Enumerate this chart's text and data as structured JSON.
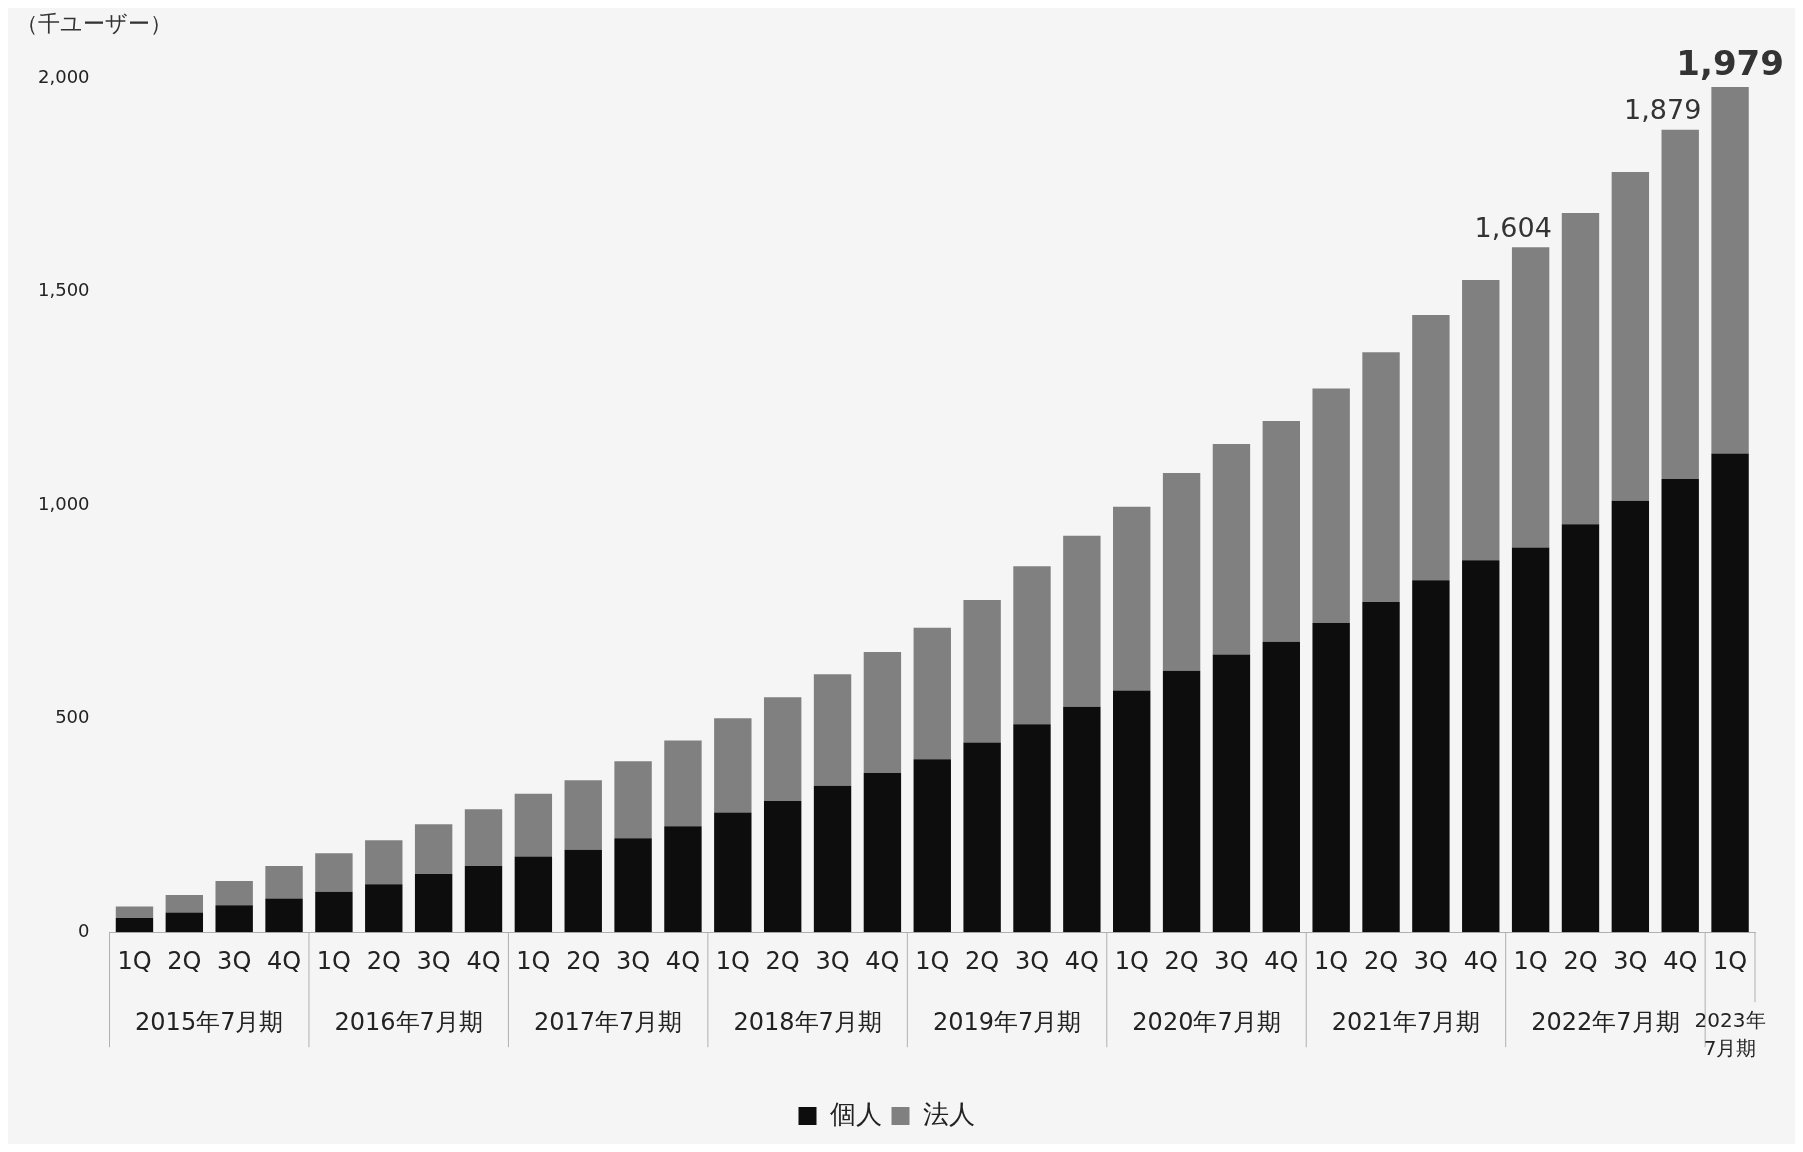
{
  "chart_data": {
    "type": "bar",
    "stacked": true,
    "ylabel": "（千ユーザー）",
    "categories": [
      "1Q",
      "2Q",
      "3Q",
      "4Q",
      "1Q",
      "2Q",
      "3Q",
      "4Q",
      "1Q",
      "2Q",
      "3Q",
      "4Q",
      "1Q",
      "2Q",
      "3Q",
      "4Q",
      "1Q",
      "2Q",
      "3Q",
      "4Q",
      "1Q",
      "2Q",
      "3Q",
      "4Q",
      "1Q",
      "2Q",
      "3Q",
      "4Q",
      "1Q",
      "2Q",
      "3Q",
      "4Q",
      "1Q"
    ],
    "series": [
      {
        "name": "個人",
        "color": "#0d0d0d",
        "values": [
          33,
          46,
          63,
          79,
          95,
          112,
          136,
          155,
          177,
          193,
          220,
          248,
          280,
          307,
          343,
          373,
          405,
          444,
          487,
          528,
          566,
          612,
          650,
          680,
          724,
          773,
          824,
          871,
          901,
          955,
          1010,
          1061,
          1121
        ]
      },
      {
        "name": "法人",
        "color": "#808080",
        "values": [
          27,
          41,
          57,
          76,
          90,
          103,
          117,
          133,
          147,
          163,
          180,
          201,
          221,
          243,
          261,
          283,
          308,
          334,
          370,
          400,
          430,
          463,
          493,
          517,
          549,
          585,
          621,
          656,
          703,
          729,
          770,
          818,
          858
        ]
      }
    ],
    "totals": [
      null,
      null,
      null,
      null,
      null,
      null,
      null,
      null,
      null,
      null,
      null,
      null,
      null,
      null,
      null,
      null,
      null,
      null,
      null,
      null,
      null,
      null,
      null,
      null,
      null,
      null,
      null,
      null,
      "1,604",
      null,
      null,
      "1,879",
      "1,979"
    ],
    "annotations": [
      "2015年7月期",
      "2016年7月期",
      "2017年7月期",
      "2018年7月期",
      "2019年7月期",
      "2020年7月期",
      "2021年7月期",
      "2022年7月期",
      "2023年7月期"
    ],
    "ylim": [
      0,
      2000
    ],
    "yticks": [
      0,
      {
        "value": 500,
        "label": "500"
      },
      {
        "value": 1000,
        "label": "1,000"
      },
      {
        "value": 1500,
        "label": "1,500"
      },
      {
        "value": 2000,
        "label": "2,000"
      }
    ],
    "grid": false,
    "legend": "bottom"
  }
}
